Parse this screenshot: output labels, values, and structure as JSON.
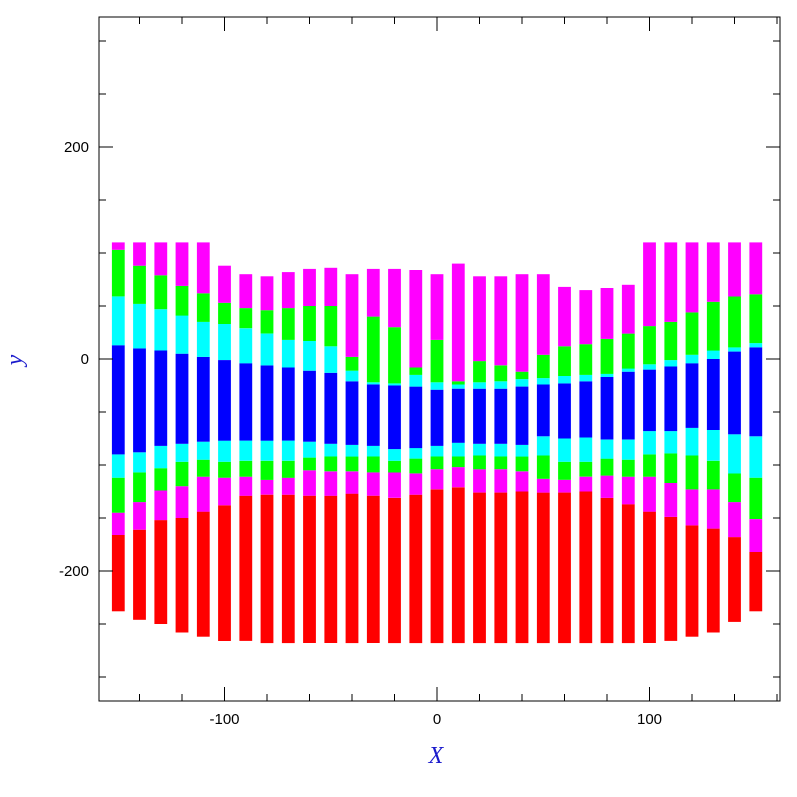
{
  "chart_data": {
    "type": "bar",
    "description_free": true,
    "title": "",
    "xlabel": "X",
    "ylabel": "y",
    "xlim": [
      -160,
      160
    ],
    "ylim": [
      -320,
      320
    ],
    "xticks": [
      -100,
      0,
      100
    ],
    "xtick_labels": [
      "-100",
      "0",
      "100"
    ],
    "yticks": [
      -200,
      0,
      200
    ],
    "ytick_labels": [
      "-200",
      "0",
      "200"
    ],
    "grid": false,
    "colors": {
      "red": "#ff0000",
      "magenta": "#ff00ff",
      "green": "#00ff00",
      "cyan": "#00ffff",
      "blue": "#0000ff",
      "frame": "#000000",
      "axis_title": "#1a1acc"
    },
    "bar_width": 6,
    "column_x": [
      -150,
      -140,
      -130,
      -120,
      -110,
      -100,
      -90,
      -80,
      -70,
      -60,
      -50,
      -40,
      -30,
      -20,
      -10,
      0,
      10,
      20,
      30,
      40,
      50,
      60,
      70,
      80,
      90,
      100,
      110,
      120,
      130,
      140,
      150
    ],
    "bins": [
      [
        -238,
        -166,
        -145,
        -112,
        -90,
        13,
        59,
        103,
        110
      ],
      [
        -246,
        -161,
        -135,
        -107,
        -88,
        10,
        52,
        88,
        110
      ],
      [
        -250,
        -152,
        -124,
        -103,
        -82,
        8,
        47,
        79,
        110
      ],
      [
        -258,
        -150,
        -120,
        -97,
        -80,
        5,
        41,
        69,
        110
      ],
      [
        -262,
        -144,
        -111,
        -95,
        -78,
        2,
        35,
        62,
        110
      ],
      [
        -266,
        -138,
        -112,
        -97,
        -77,
        -1,
        33,
        53,
        88
      ],
      [
        -266,
        -129,
        -111,
        -96,
        -77,
        -4,
        29,
        48,
        80
      ],
      [
        -268,
        -128,
        -114,
        -96,
        -77,
        -6,
        24,
        46,
        78
      ],
      [
        -268,
        -128,
        -112,
        -96,
        -77,
        -8,
        18,
        48,
        82
      ],
      [
        -268,
        -129,
        -105,
        -93,
        -78,
        -11,
        17,
        50,
        85
      ],
      [
        -268,
        -129,
        -106,
        -92,
        -80,
        -13,
        12,
        50,
        86
      ],
      [
        -268,
        -127,
        -106,
        -92,
        -81,
        -21,
        -11,
        2,
        80
      ],
      [
        -268,
        -129,
        -107,
        -92,
        -82,
        -24,
        -22,
        40,
        85
      ],
      [
        -268,
        -131,
        -107,
        -96,
        -85,
        -25,
        -23,
        30,
        85
      ],
      [
        -268,
        -128,
        -108,
        -94,
        -84,
        -26,
        -15,
        -8,
        84
      ],
      [
        -268,
        -123,
        -104,
        -92,
        -82,
        -29,
        -22,
        18,
        80
      ],
      [
        -268,
        -121,
        -102,
        -92,
        -79,
        -28,
        -24,
        -21,
        90
      ],
      [
        -268,
        -126,
        -104,
        -91,
        -80,
        -28,
        -22,
        -2,
        78
      ],
      [
        -268,
        -126,
        -104,
        -92,
        -80,
        -28,
        -21,
        -6,
        78
      ],
      [
        -268,
        -125,
        -106,
        -92,
        -81,
        -26,
        -19,
        -12,
        80
      ],
      [
        -268,
        -126,
        -113,
        -91,
        -73,
        -24,
        -18,
        4,
        80
      ],
      [
        -268,
        -126,
        -114,
        -97,
        -75,
        -23,
        -16,
        12,
        68
      ],
      [
        -268,
        -125,
        -111,
        -97,
        -74,
        -21,
        -15,
        14,
        65
      ],
      [
        -268,
        -131,
        -110,
        -94,
        -76,
        -17,
        -14,
        19,
        67
      ],
      [
        -268,
        -137,
        -111,
        -95,
        -76,
        -12,
        -9,
        24,
        70
      ],
      [
        -268,
        -144,
        -111,
        -90,
        -68,
        -10,
        -5,
        31,
        110
      ],
      [
        -266,
        -149,
        -117,
        -89,
        -68,
        -7,
        -1,
        35,
        110
      ],
      [
        -262,
        -157,
        -123,
        -91,
        -65,
        -4,
        4,
        44,
        110
      ],
      [
        -258,
        -160,
        -123,
        -96,
        -67,
        0,
        8,
        54,
        110
      ],
      [
        -248,
        -168,
        -135,
        -108,
        -71,
        7,
        11,
        59,
        110
      ],
      [
        -238,
        -182,
        -151,
        -112,
        -73,
        11,
        15,
        61,
        110
      ]
    ],
    "series": [
      {
        "color_key": "red"
      },
      {
        "color_key": "magenta"
      },
      {
        "color_key": "green"
      },
      {
        "color_key": "cyan"
      },
      {
        "color_key": "blue"
      },
      {
        "color_key": "cyan"
      },
      {
        "color_key": "green"
      },
      {
        "color_key": "magenta"
      }
    ]
  }
}
